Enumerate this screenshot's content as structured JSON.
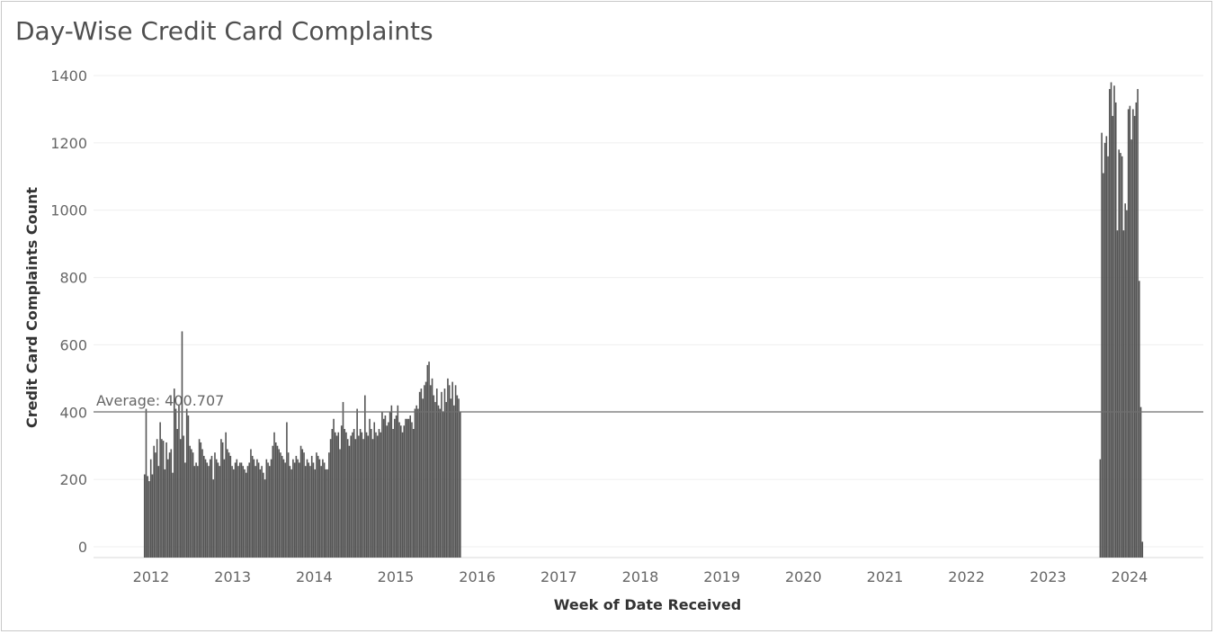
{
  "chart_data": {
    "type": "bar",
    "title": "Day-Wise Credit Card Complaints",
    "xlabel": "Week of Date Received",
    "ylabel": "Credit Card Complaints Count",
    "ylim": [
      -30,
      1410
    ],
    "y_ticks": [
      0,
      200,
      400,
      600,
      800,
      1000,
      1200,
      1400
    ],
    "x_ticks": [
      "2012",
      "2013",
      "2014",
      "2015",
      "2016",
      "2017",
      "2018",
      "2019",
      "2020",
      "2021",
      "2022",
      "2023",
      "2024"
    ],
    "xlim_years": [
      2011.4,
      2025.0
    ],
    "grid": true,
    "bar_color": "#555555",
    "reference_line": {
      "label": "Average: 400.707",
      "value": 400.707
    },
    "series": [
      {
        "start_year": 2011.92,
        "week_step": 0.01917,
        "values": [
          215,
          410,
          210,
          195,
          260,
          215,
          300,
          280,
          320,
          240,
          370,
          320,
          315,
          230,
          310,
          260,
          280,
          290,
          220,
          470,
          410,
          350,
          420,
          320,
          640,
          330,
          250,
          410,
          390,
          300,
          290,
          280,
          240,
          250,
          240,
          320,
          310,
          290,
          270,
          260,
          250,
          240,
          260,
          270,
          200,
          280,
          260,
          250,
          240,
          320,
          310,
          260,
          340,
          290,
          280,
          270,
          240,
          230,
          250,
          260,
          240,
          250,
          250,
          240,
          230,
          220,
          240,
          250,
          290,
          270,
          260,
          240,
          260,
          250,
          230,
          240,
          220,
          200,
          260,
          250,
          240,
          260,
          300,
          340,
          310,
          300,
          290,
          280,
          270,
          260,
          250,
          370,
          280,
          240,
          230,
          260,
          250,
          270,
          260,
          250,
          300,
          290,
          280,
          240,
          260,
          250,
          240,
          270,
          250,
          230,
          280,
          270,
          260,
          240,
          260,
          250,
          230,
          230,
          280,
          320,
          350,
          380,
          340,
          330,
          340,
          290,
          360,
          430,
          350,
          340,
          320,
          300,
          330,
          340,
          350,
          320,
          410,
          330,
          350,
          340,
          320,
          450,
          340,
          330,
          380,
          350,
          320,
          370,
          340,
          330,
          350,
          340,
          400,
          380,
          390,
          360,
          370,
          400,
          420,
          350,
          380,
          390,
          420,
          370,
          360,
          340,
          360,
          380,
          380,
          380,
          390,
          370,
          350,
          410,
          420,
          410,
          460,
          470,
          440,
          480,
          490,
          540,
          550,
          480,
          500,
          450,
          430,
          470,
          420,
          410,
          460,
          400,
          470,
          430,
          500,
          480,
          440,
          490,
          420,
          480,
          450,
          440,
          400
        ],
        "late_start_year": 2023.64,
        "late_values": [
          260,
          1230,
          1110,
          1200,
          1220,
          1160,
          1360,
          1380,
          1280,
          1370,
          1320,
          940,
          1180,
          1170,
          1160,
          940,
          1020,
          1000,
          1300,
          1310,
          1210,
          1300,
          1280,
          1320,
          1360,
          790,
          415,
          15
        ]
      }
    ]
  }
}
